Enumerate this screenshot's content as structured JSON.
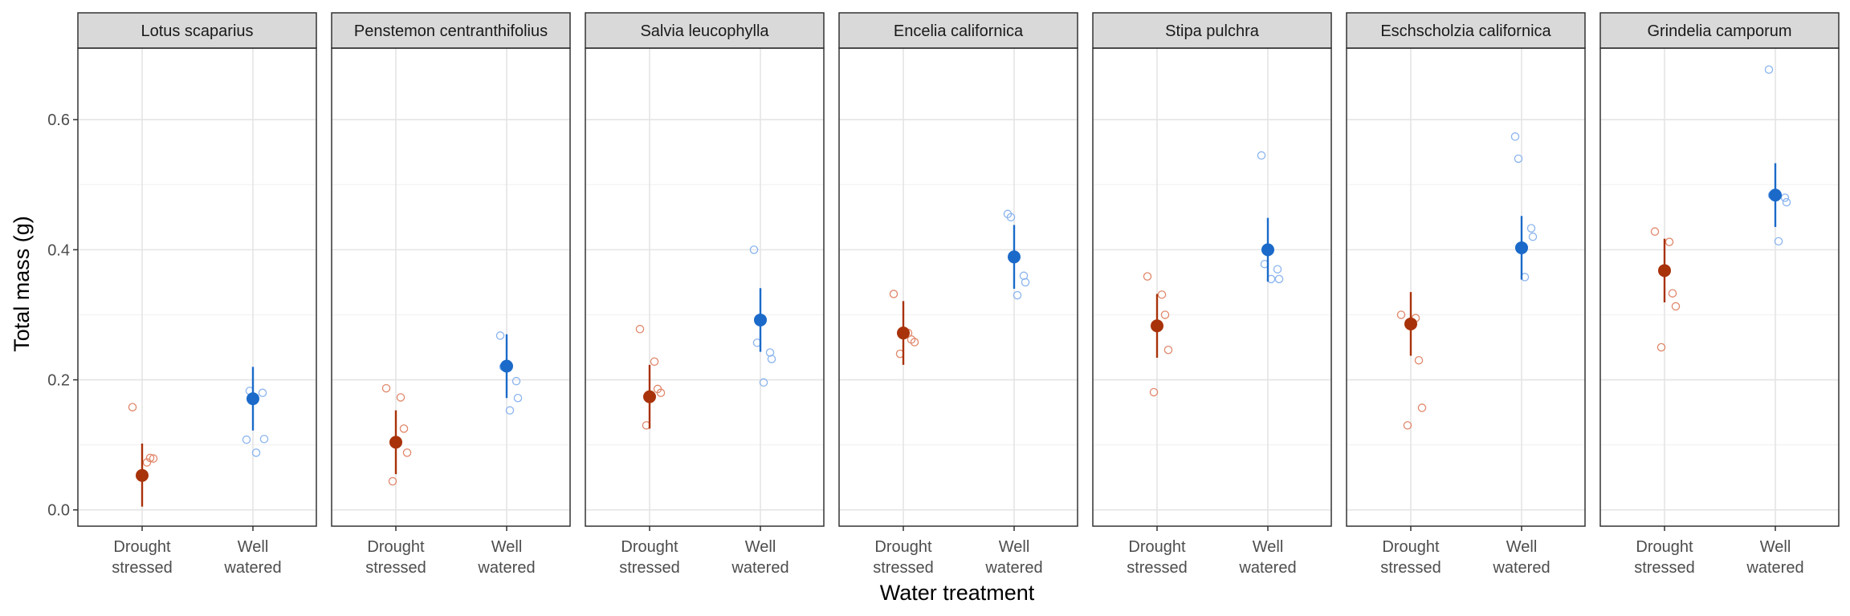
{
  "chart_data": {
    "type": "scatter",
    "subtype": "faceted point-range with jittered raw points",
    "xlabel": "Water treatment",
    "ylabel": "Total mass (g)",
    "ylim": [
      -0.025,
      0.71
    ],
    "y_ticks": [
      "0.0",
      "0.2",
      "0.4",
      "0.6"
    ],
    "y_tick_values": [
      0.0,
      0.2,
      0.4,
      0.6
    ],
    "categories": [
      {
        "key": "drought",
        "line1": "Drought",
        "line2": "stressed"
      },
      {
        "key": "well",
        "line1": "Well",
        "line2": "watered"
      }
    ],
    "colors": {
      "drought": "#A8320A",
      "well": "#1B6AC9",
      "drought_raw": "#E0876A",
      "well_raw": "#8AB4EE"
    },
    "grid": true,
    "legend": "none",
    "panels": [
      {
        "title": "Lotus scaparius",
        "drought": {
          "mean": 0.053,
          "lo": 0.005,
          "hi": 0.102,
          "points": [
            0.158,
            0.073,
            0.08,
            0.079
          ]
        },
        "well": {
          "mean": 0.171,
          "lo": 0.122,
          "hi": 0.22,
          "points": [
            0.108,
            0.183,
            0.18,
            0.109,
            0.088
          ]
        }
      },
      {
        "title": "Penstemon centranthifolius",
        "drought": {
          "mean": 0.104,
          "lo": 0.055,
          "hi": 0.153,
          "points": [
            0.187,
            0.173,
            0.125,
            0.088,
            0.044
          ]
        },
        "well": {
          "mean": 0.221,
          "lo": 0.172,
          "hi": 0.27,
          "points": [
            0.268,
            0.22,
            0.198,
            0.172,
            0.153
          ]
        }
      },
      {
        "title": "Salvia leucophylla",
        "drought": {
          "mean": 0.174,
          "lo": 0.125,
          "hi": 0.223,
          "points": [
            0.278,
            0.228,
            0.186,
            0.18,
            0.13
          ]
        },
        "well": {
          "mean": 0.292,
          "lo": 0.243,
          "hi": 0.341,
          "points": [
            0.4,
            0.257,
            0.242,
            0.232,
            0.196
          ]
        }
      },
      {
        "title": "Encelia californica",
        "drought": {
          "mean": 0.272,
          "lo": 0.223,
          "hi": 0.321,
          "points": [
            0.332,
            0.272,
            0.262,
            0.258,
            0.24
          ]
        },
        "well": {
          "mean": 0.389,
          "lo": 0.34,
          "hi": 0.438,
          "points": [
            0.455,
            0.45,
            0.36,
            0.35,
            0.33
          ]
        }
      },
      {
        "title": "Stipa pulchra",
        "drought": {
          "mean": 0.283,
          "lo": 0.234,
          "hi": 0.332,
          "points": [
            0.359,
            0.331,
            0.3,
            0.246,
            0.181
          ]
        },
        "well": {
          "mean": 0.4,
          "lo": 0.351,
          "hi": 0.449,
          "points": [
            0.545,
            0.378,
            0.37,
            0.355,
            0.355
          ]
        }
      },
      {
        "title": "Eschscholzia californica",
        "drought": {
          "mean": 0.286,
          "lo": 0.237,
          "hi": 0.335,
          "points": [
            0.3,
            0.295,
            0.23,
            0.157,
            0.13
          ]
        },
        "well": {
          "mean": 0.403,
          "lo": 0.354,
          "hi": 0.452,
          "points": [
            0.574,
            0.54,
            0.433,
            0.42,
            0.358
          ]
        }
      },
      {
        "title": "Grindelia camporum",
        "drought": {
          "mean": 0.368,
          "lo": 0.319,
          "hi": 0.417,
          "points": [
            0.428,
            0.412,
            0.333,
            0.313,
            0.25
          ]
        },
        "well": {
          "mean": 0.484,
          "lo": 0.435,
          "hi": 0.533,
          "points": [
            0.677,
            0.484,
            0.48,
            0.473,
            0.413
          ]
        }
      }
    ]
  }
}
